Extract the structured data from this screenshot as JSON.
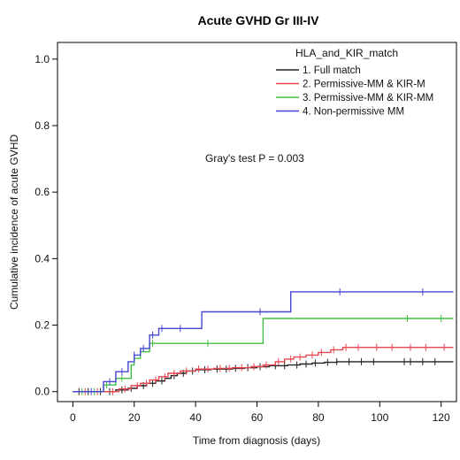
{
  "chart_data": {
    "type": "line",
    "title": "Acute GVHD Gr III-IV",
    "xlabel": "Time from diagnosis (days)",
    "ylabel": "Cumulative incidence of acute GVHD",
    "xlim": [
      -5,
      125
    ],
    "ylim": [
      -0.03,
      1.05
    ],
    "xticks": [
      0,
      20,
      40,
      60,
      80,
      100,
      120
    ],
    "yticks": [
      0.0,
      0.2,
      0.4,
      0.6,
      0.8,
      1.0
    ],
    "xtick_labels": [
      "0",
      "20",
      "40",
      "60",
      "80",
      "100",
      "120"
    ],
    "ytick_labels": [
      "0.0",
      "0.2",
      "0.4",
      "0.6",
      "0.8",
      "1.0"
    ],
    "legend_title": "HLA_and_KIR_match",
    "legend_position": "top-right",
    "annotation": "Gray's test P = 0.003",
    "grid": false,
    "series": [
      {
        "name": "1. Full match",
        "color": "#222222",
        "steps": [
          [
            0,
            0
          ],
          [
            14,
            0.005
          ],
          [
            18,
            0.01
          ],
          [
            21,
            0.018
          ],
          [
            24,
            0.025
          ],
          [
            27,
            0.032
          ],
          [
            30,
            0.04
          ],
          [
            32,
            0.048
          ],
          [
            34,
            0.055
          ],
          [
            37,
            0.062
          ],
          [
            40,
            0.066
          ],
          [
            45,
            0.068
          ],
          [
            52,
            0.07
          ],
          [
            56,
            0.072
          ],
          [
            60,
            0.075
          ],
          [
            64,
            0.078
          ],
          [
            70,
            0.08
          ],
          [
            74,
            0.083
          ],
          [
            78,
            0.086
          ],
          [
            82,
            0.088
          ],
          [
            86,
            0.09
          ],
          [
            124,
            0.09
          ]
        ],
        "censor_x": [
          2,
          5,
          9,
          12,
          16,
          19,
          23,
          26,
          29,
          33,
          36,
          39,
          43,
          47,
          50,
          53,
          57,
          61,
          66,
          69,
          73,
          76,
          79,
          83,
          86,
          90,
          94,
          98,
          108,
          110,
          114,
          118
        ]
      },
      {
        "name": "2. Permissive-MM & KIR-M",
        "color": "#e8474f",
        "steps": [
          [
            0,
            0
          ],
          [
            15,
            0.008
          ],
          [
            19,
            0.018
          ],
          [
            22,
            0.025
          ],
          [
            25,
            0.035
          ],
          [
            28,
            0.045
          ],
          [
            31,
            0.055
          ],
          [
            35,
            0.062
          ],
          [
            40,
            0.068
          ],
          [
            46,
            0.07
          ],
          [
            52,
            0.072
          ],
          [
            58,
            0.075
          ],
          [
            62,
            0.08
          ],
          [
            66,
            0.09
          ],
          [
            69,
            0.098
          ],
          [
            72,
            0.104
          ],
          [
            76,
            0.11
          ],
          [
            80,
            0.118
          ],
          [
            84,
            0.126
          ],
          [
            88,
            0.133
          ],
          [
            124,
            0.133
          ]
        ],
        "censor_x": [
          4,
          8,
          13,
          17,
          21,
          24,
          27,
          30,
          33,
          37,
          41,
          44,
          48,
          51,
          55,
          59,
          63,
          67,
          71,
          74,
          78,
          81,
          85,
          89,
          93,
          99,
          104,
          110,
          115,
          121
        ]
      },
      {
        "name": "3. Permissive-MM & KIR-MM",
        "color": "#43c043",
        "steps": [
          [
            0,
            0
          ],
          [
            10,
            0.02
          ],
          [
            14,
            0.04
          ],
          [
            19,
            0.08
          ],
          [
            20,
            0.1
          ],
          [
            22,
            0.12
          ],
          [
            25,
            0.145
          ],
          [
            28,
            0.145
          ],
          [
            62,
            0.22
          ],
          [
            124,
            0.22
          ]
        ],
        "censor_x": [
          3,
          7,
          11,
          16,
          22,
          26,
          44,
          109,
          120
        ]
      },
      {
        "name": "4. Non-permissive MM",
        "color": "#4646d4",
        "steps": [
          [
            0,
            0
          ],
          [
            10,
            0.03
          ],
          [
            14,
            0.06
          ],
          [
            18,
            0.09
          ],
          [
            20,
            0.11
          ],
          [
            22,
            0.13
          ],
          [
            25,
            0.17
          ],
          [
            28,
            0.19
          ],
          [
            42,
            0.24
          ],
          [
            71,
            0.3
          ],
          [
            124,
            0.3
          ]
        ],
        "censor_x": [
          6,
          12,
          16,
          20,
          23,
          26,
          29,
          35,
          61,
          87,
          114
        ]
      }
    ]
  }
}
